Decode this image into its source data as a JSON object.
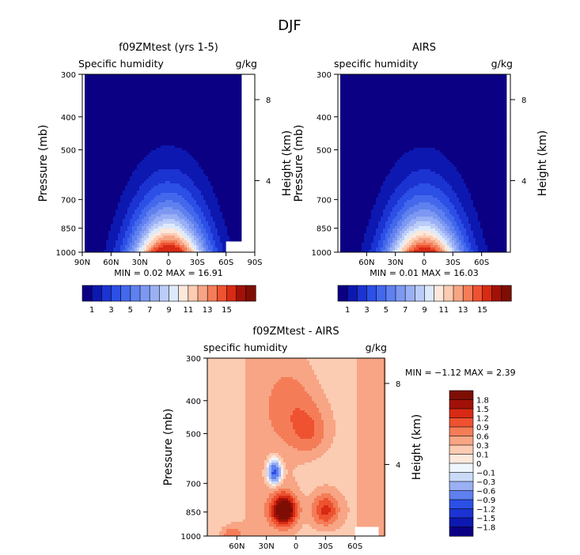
{
  "figure_title": "DJF",
  "chart_data": [
    {
      "type": "heatmap",
      "title": "f09ZMtest (yrs 1-5)",
      "subtitle_left": "Specific humidity",
      "subtitle_right": "g/kg",
      "ylabel": "Pressure (mb)",
      "ylabel_right": "Height (km)",
      "x_ticks": [
        "90N",
        "60N",
        "30N",
        "0",
        "30S",
        "60S",
        "90S"
      ],
      "x_tick_values": [
        90,
        60,
        30,
        0,
        -30,
        -60,
        -90
      ],
      "xlim": [
        90,
        -90
      ],
      "y_ticks": [
        300,
        400,
        500,
        700,
        850,
        1000
      ],
      "ylim": [
        1000,
        300
      ],
      "y_scale": "log",
      "height_ticks": [
        8,
        4
      ],
      "height_tick_pressures": [
        356,
        616
      ],
      "stats_text": "MIN =   0.02   MAX =  16.91",
      "min": 0.02,
      "max": 16.91,
      "colorbar_labels": [
        "1",
        "3",
        "5",
        "7",
        "9",
        "11",
        "13",
        "15"
      ],
      "levels": [
        1,
        2,
        3,
        4,
        5,
        6,
        7,
        8,
        9,
        10,
        11,
        12,
        13,
        14,
        15
      ],
      "field": {
        "peak": 16.91,
        "peak_lat": 0,
        "valid_lat": [
          88,
          -75
        ]
      }
    },
    {
      "type": "heatmap",
      "title": "AIRS",
      "subtitle_left": "specific humidity",
      "subtitle_right": "g/kg",
      "ylabel": "Pressure (mb)",
      "ylabel_right": "Height (km)",
      "x_ticks": [
        "60N",
        "30N",
        "0",
        "30S",
        "60S"
      ],
      "x_tick_values": [
        60,
        30,
        0,
        -30,
        -60
      ],
      "xlim": [
        90,
        -90
      ],
      "y_ticks": [
        300,
        400,
        500,
        700,
        850,
        1000
      ],
      "ylim": [
        1000,
        300
      ],
      "y_scale": "log",
      "height_ticks": [
        8,
        4
      ],
      "height_tick_pressures": [
        356,
        616
      ],
      "stats_text": "MIN =   0.01   MAX =  16.03",
      "min": 0.01,
      "max": 16.03,
      "colorbar_labels": [
        "1",
        "3",
        "5",
        "7",
        "9",
        "11",
        "13",
        "15"
      ],
      "levels": [
        1,
        2,
        3,
        4,
        5,
        6,
        7,
        8,
        9,
        10,
        11,
        12,
        13,
        14,
        15
      ],
      "field": {
        "peak": 16.03,
        "peak_lat": 0,
        "valid_lat": [
          88,
          -85
        ]
      }
    },
    {
      "type": "heatmap",
      "title": "f09ZMtest - AIRS",
      "subtitle_left": "specific humidity",
      "subtitle_right": "g/kg",
      "ylabel": "Pressure (mb)",
      "ylabel_right": "Height (km)",
      "x_ticks": [
        "60N",
        "30N",
        "0",
        "30S",
        "60S"
      ],
      "x_tick_values": [
        60,
        30,
        0,
        -30,
        -60
      ],
      "xlim": [
        90,
        -90
      ],
      "y_ticks": [
        300,
        400,
        500,
        700,
        850,
        1000
      ],
      "ylim": [
        1000,
        300
      ],
      "y_scale": "log",
      "height_ticks": [
        8,
        4
      ],
      "height_tick_pressures": [
        356,
        616
      ],
      "stats_text": "MIN =  −1.12   MAX =   2.39",
      "min": -1.12,
      "max": 2.39,
      "colorbar_labels": [
        "1.8",
        "1.5",
        "1.2",
        "0.9",
        "0.6",
        "0.3",
        "0.1",
        "0",
        "−0.1",
        "−0.3",
        "−0.6",
        "−0.9",
        "−1.2",
        "−1.5",
        "−1.8"
      ],
      "levels": [
        -1.8,
        -1.5,
        -1.2,
        -0.9,
        -0.6,
        -0.3,
        -0.1,
        0,
        0.1,
        0.3,
        0.6,
        0.9,
        1.2,
        1.5,
        1.8
      ],
      "field": {
        "maxima": [
          {
            "lat": 12,
            "p": 840,
            "v": 2.39
          },
          {
            "lat": -30,
            "p": 840,
            "v": 1.4
          }
        ],
        "minimum": {
          "lat": 22,
          "p": 660,
          "v": -1.12
        }
      }
    }
  ],
  "colors": {
    "abs_palette": [
      "#0b0083",
      "#0d18b0",
      "#1b33d1",
      "#2c4fe6",
      "#4468ec",
      "#5f80ef",
      "#7c98f2",
      "#9ab0f5",
      "#bcccf9",
      "#ddeafb",
      "#fde8dc",
      "#fbcbb2",
      "#f7a584",
      "#f47d58",
      "#ee5230",
      "#d82a14",
      "#a11108",
      "#7e0e04"
    ],
    "diff_palette": [
      "#0b0083",
      "#0d18b0",
      "#1b33d1",
      "#2c4fe6",
      "#5f80ef",
      "#9ab0f5",
      "#cadbf8",
      "#eef5fd",
      "#fde8dc",
      "#fbcbb2",
      "#f7a584",
      "#f47d58",
      "#ee5230",
      "#d82a14",
      "#a11108",
      "#7e0e04"
    ]
  }
}
